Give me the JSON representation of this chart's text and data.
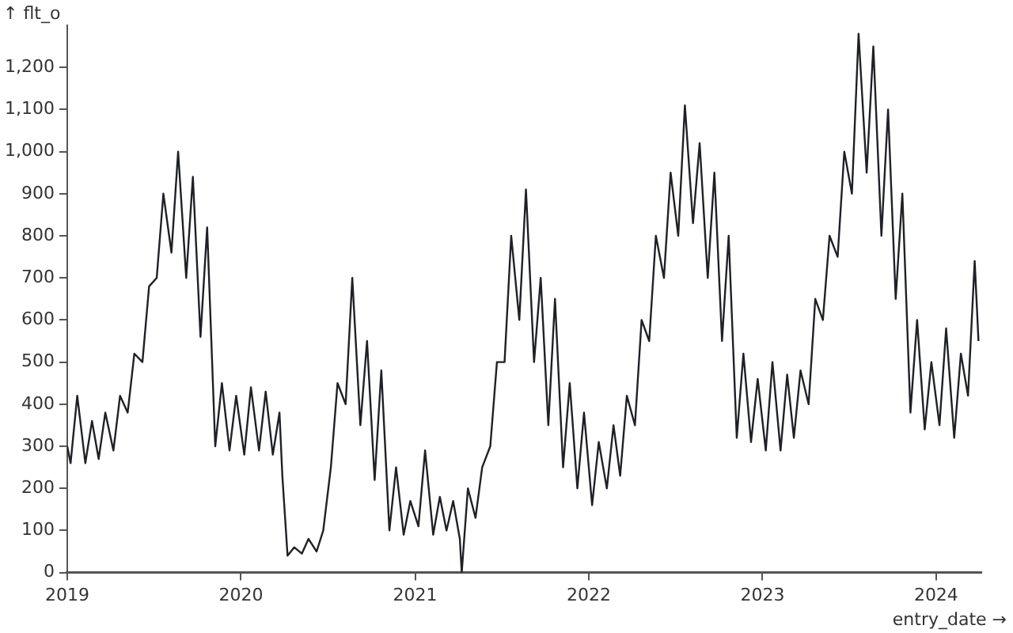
{
  "chart_data": {
    "type": "line",
    "xlabel": "entry_date →",
    "ylabel": "↑ flt_o",
    "xlim": [
      "2019-01-01",
      "2024-04-05"
    ],
    "xticks": [
      "2019",
      "2020",
      "2021",
      "2022",
      "2023",
      "2024"
    ],
    "ylim": [
      0,
      1300
    ],
    "yticks": [
      0,
      100,
      200,
      300,
      400,
      500,
      600,
      700,
      800,
      900,
      {
        "value": 1000,
        "label": "1,000"
      },
      {
        "value": 1100,
        "label": "1,100"
      },
      {
        "value": 1200,
        "label": "1,200"
      }
    ],
    "grid": false,
    "legend": false,
    "marker": "none",
    "line_style": "solid",
    "series": [
      {
        "color": "#1f2128",
        "x": [
          "2019-01-01",
          "2019-01-08",
          "2019-01-22",
          "2019-02-08",
          "2019-02-22",
          "2019-03-08",
          "2019-03-22",
          "2019-04-08",
          "2019-04-22",
          "2019-05-08",
          "2019-05-22",
          "2019-06-08",
          "2019-06-22",
          "2019-07-08",
          "2019-07-22",
          "2019-08-08",
          "2019-08-22",
          "2019-09-08",
          "2019-09-22",
          "2019-10-08",
          "2019-10-22",
          "2019-11-08",
          "2019-11-22",
          "2019-12-08",
          "2019-12-22",
          "2020-01-08",
          "2020-01-22",
          "2020-02-08",
          "2020-02-22",
          "2020-03-08",
          "2020-03-22",
          "2020-03-28",
          "2020-04-08",
          "2020-04-22",
          "2020-05-08",
          "2020-05-22",
          "2020-06-08",
          "2020-06-22",
          "2020-07-08",
          "2020-07-22",
          "2020-08-08",
          "2020-08-22",
          "2020-09-08",
          "2020-09-22",
          "2020-10-08",
          "2020-10-22",
          "2020-11-08",
          "2020-11-22",
          "2020-12-08",
          "2020-12-22",
          "2021-01-08",
          "2021-01-22",
          "2021-02-08",
          "2021-02-22",
          "2021-03-08",
          "2021-03-22",
          "2021-04-05",
          "2021-04-09",
          "2021-04-22",
          "2021-05-08",
          "2021-05-22",
          "2021-06-08",
          "2021-06-22",
          "2021-07-08",
          "2021-07-22",
          "2021-08-08",
          "2021-08-22",
          "2021-09-08",
          "2021-09-22",
          "2021-10-08",
          "2021-10-22",
          "2021-11-08",
          "2021-11-22",
          "2021-12-08",
          "2021-12-22",
          "2022-01-08",
          "2022-01-22",
          "2022-02-08",
          "2022-02-22",
          "2022-03-08",
          "2022-03-22",
          "2022-04-08",
          "2022-04-22",
          "2022-05-08",
          "2022-05-22",
          "2022-06-08",
          "2022-06-22",
          "2022-07-08",
          "2022-07-22",
          "2022-08-08",
          "2022-08-22",
          "2022-09-08",
          "2022-09-22",
          "2022-10-08",
          "2022-10-22",
          "2022-11-08",
          "2022-11-22",
          "2022-12-08",
          "2022-12-22",
          "2023-01-08",
          "2023-01-22",
          "2023-02-08",
          "2023-02-22",
          "2023-03-08",
          "2023-03-22",
          "2023-04-08",
          "2023-04-22",
          "2023-05-08",
          "2023-05-22",
          "2023-06-08",
          "2023-06-22",
          "2023-07-08",
          "2023-07-22",
          "2023-08-08",
          "2023-08-22",
          "2023-09-08",
          "2023-09-22",
          "2023-10-08",
          "2023-10-22",
          "2023-11-08",
          "2023-11-22",
          "2023-12-08",
          "2023-12-22",
          "2024-01-08",
          "2024-01-22",
          "2024-02-08",
          "2024-02-22",
          "2024-03-08",
          "2024-03-22",
          "2024-03-30"
        ],
        "values": [
          300,
          260,
          420,
          260,
          360,
          270,
          380,
          290,
          420,
          380,
          520,
          500,
          680,
          700,
          900,
          760,
          1000,
          700,
          940,
          560,
          820,
          300,
          450,
          290,
          420,
          280,
          440,
          290,
          430,
          280,
          380,
          230,
          40,
          60,
          45,
          80,
          50,
          100,
          250,
          450,
          400,
          700,
          350,
          550,
          220,
          480,
          100,
          250,
          90,
          170,
          110,
          290,
          90,
          180,
          100,
          170,
          80,
          0,
          200,
          130,
          250,
          300,
          500,
          500,
          800,
          600,
          910,
          500,
          700,
          350,
          650,
          250,
          450,
          200,
          380,
          160,
          310,
          200,
          350,
          230,
          420,
          350,
          600,
          550,
          800,
          700,
          950,
          800,
          1110,
          830,
          1020,
          700,
          950,
          550,
          800,
          320,
          520,
          310,
          460,
          290,
          500,
          290,
          470,
          320,
          480,
          400,
          650,
          600,
          800,
          750,
          1000,
          900,
          1280,
          950,
          1250,
          800,
          1100,
          650,
          900,
          380,
          600,
          340,
          500,
          350,
          580,
          320,
          520,
          420,
          740,
          550
        ]
      }
    ]
  }
}
